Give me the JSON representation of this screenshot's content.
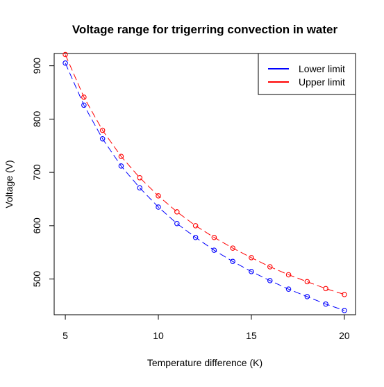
{
  "chart_data": {
    "type": "line",
    "title": "Voltage range for trigerring convection in water",
    "xlabel": "Temperature difference (K)",
    "ylabel": "Voltage (V)",
    "xlim": [
      4.4,
      20.6
    ],
    "ylim": [
      433,
      923
    ],
    "xticks": [
      5,
      10,
      15,
      20
    ],
    "yticks": [
      500,
      600,
      700,
      800,
      900
    ],
    "legend_position": "top-right",
    "x": [
      5,
      6,
      7,
      8,
      9,
      10,
      11,
      12,
      13,
      14,
      15,
      16,
      17,
      18,
      19,
      20
    ],
    "series": [
      {
        "name": "Lower limit",
        "color": "#0000ff",
        "values": [
          905,
          826,
          763,
          712,
          671,
          635,
          604,
          578,
          554,
          533,
          514,
          497,
          481,
          467,
          453,
          441
        ]
      },
      {
        "name": "Upper limit",
        "color": "#ff0000",
        "values": [
          921,
          841,
          779,
          730,
          690,
          656,
          626,
          600,
          578,
          558,
          540,
          523,
          508,
          495,
          482,
          471
        ]
      }
    ]
  }
}
